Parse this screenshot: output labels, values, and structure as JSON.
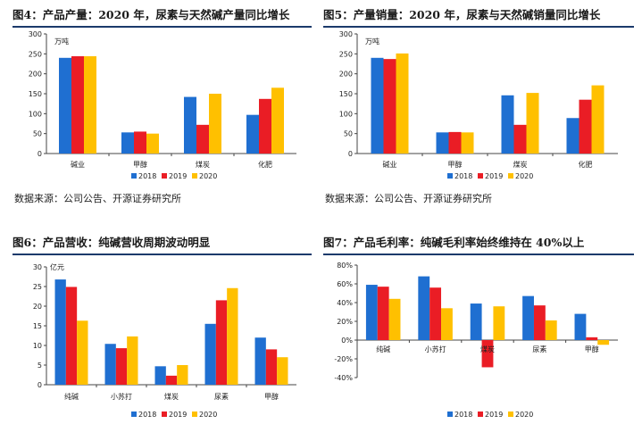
{
  "colors": {
    "s2018": "#1f6fd1",
    "s2019": "#ea1d25",
    "s2020": "#ffc000",
    "title_rule": "#1b3a6b",
    "top_strip": "#3a3a3a"
  },
  "source_note_left": "数据来源：公司公告、开源证券研究所",
  "source_note_right": "数据来源：公司公告、开源证券研究所",
  "chart_data": [
    {
      "type": "bar",
      "title": "图4：产品产量：2020 年，尿素与天然碱产量同比增长",
      "unit": "万吨",
      "categories": [
        "碱业",
        "甲醇",
        "煤炭",
        "化肥"
      ],
      "ylim": [
        0,
        300
      ],
      "yticks": [
        "0",
        "50",
        "100",
        "150",
        "200",
        "250",
        "300"
      ],
      "series": [
        {
          "name": "2018",
          "values": [
            240,
            53,
            142,
            97
          ]
        },
        {
          "name": "2019",
          "values": [
            244,
            55,
            72,
            137
          ]
        },
        {
          "name": "2020",
          "values": [
            244,
            50,
            150,
            165
          ]
        }
      ],
      "legend": "bottom"
    },
    {
      "type": "bar",
      "title": "图5：产量销量：2020 年，尿素与天然碱销量同比增长",
      "unit": "万吨",
      "categories": [
        "碱业",
        "甲醇",
        "煤炭",
        "化肥"
      ],
      "ylim": [
        0,
        300
      ],
      "yticks": [
        "0",
        "50",
        "100",
        "150",
        "200",
        "250",
        "300"
      ],
      "series": [
        {
          "name": "2018",
          "values": [
            240,
            53,
            146,
            89
          ]
        },
        {
          "name": "2019",
          "values": [
            237,
            54,
            72,
            135
          ]
        },
        {
          "name": "2020",
          "values": [
            251,
            53,
            152,
            171
          ]
        }
      ],
      "legend": "bottom"
    },
    {
      "type": "bar",
      "title": "图6：产品营收：纯碱营收周期波动明显",
      "unit": "亿元",
      "categories": [
        "纯碱",
        "小苏打",
        "煤炭",
        "尿素",
        "甲醇"
      ],
      "ylim": [
        0,
        30
      ],
      "yticks": [
        "0",
        "5",
        "10",
        "15",
        "20",
        "25",
        "30"
      ],
      "series": [
        {
          "name": "2018",
          "values": [
            26.8,
            10.4,
            4.7,
            15.5,
            12.0
          ]
        },
        {
          "name": "2019",
          "values": [
            24.9,
            9.3,
            2.3,
            21.5,
            9.0
          ]
        },
        {
          "name": "2020",
          "values": [
            16.3,
            12.3,
            5.0,
            24.6,
            7.0
          ]
        }
      ],
      "legend": "bottom"
    },
    {
      "type": "bar",
      "title": "图7：产品毛利率：纯碱毛利率始终维持在 40%以上",
      "categories": [
        "纯碱",
        "小苏打",
        "煤炭",
        "尿素",
        "甲醇"
      ],
      "ylim": [
        -0.4,
        0.8
      ],
      "yticks": [
        "-40%",
        "-20%",
        "0%",
        "20%",
        "40%",
        "60%",
        "80%"
      ],
      "series": [
        {
          "name": "2018",
          "values": [
            0.59,
            0.68,
            0.39,
            0.47,
            0.28
          ]
        },
        {
          "name": "2019",
          "values": [
            0.57,
            0.56,
            -0.29,
            0.37,
            0.03
          ]
        },
        {
          "name": "2020",
          "values": [
            0.44,
            0.34,
            0.36,
            0.21,
            -0.05
          ]
        }
      ],
      "legend": "bottom"
    }
  ]
}
